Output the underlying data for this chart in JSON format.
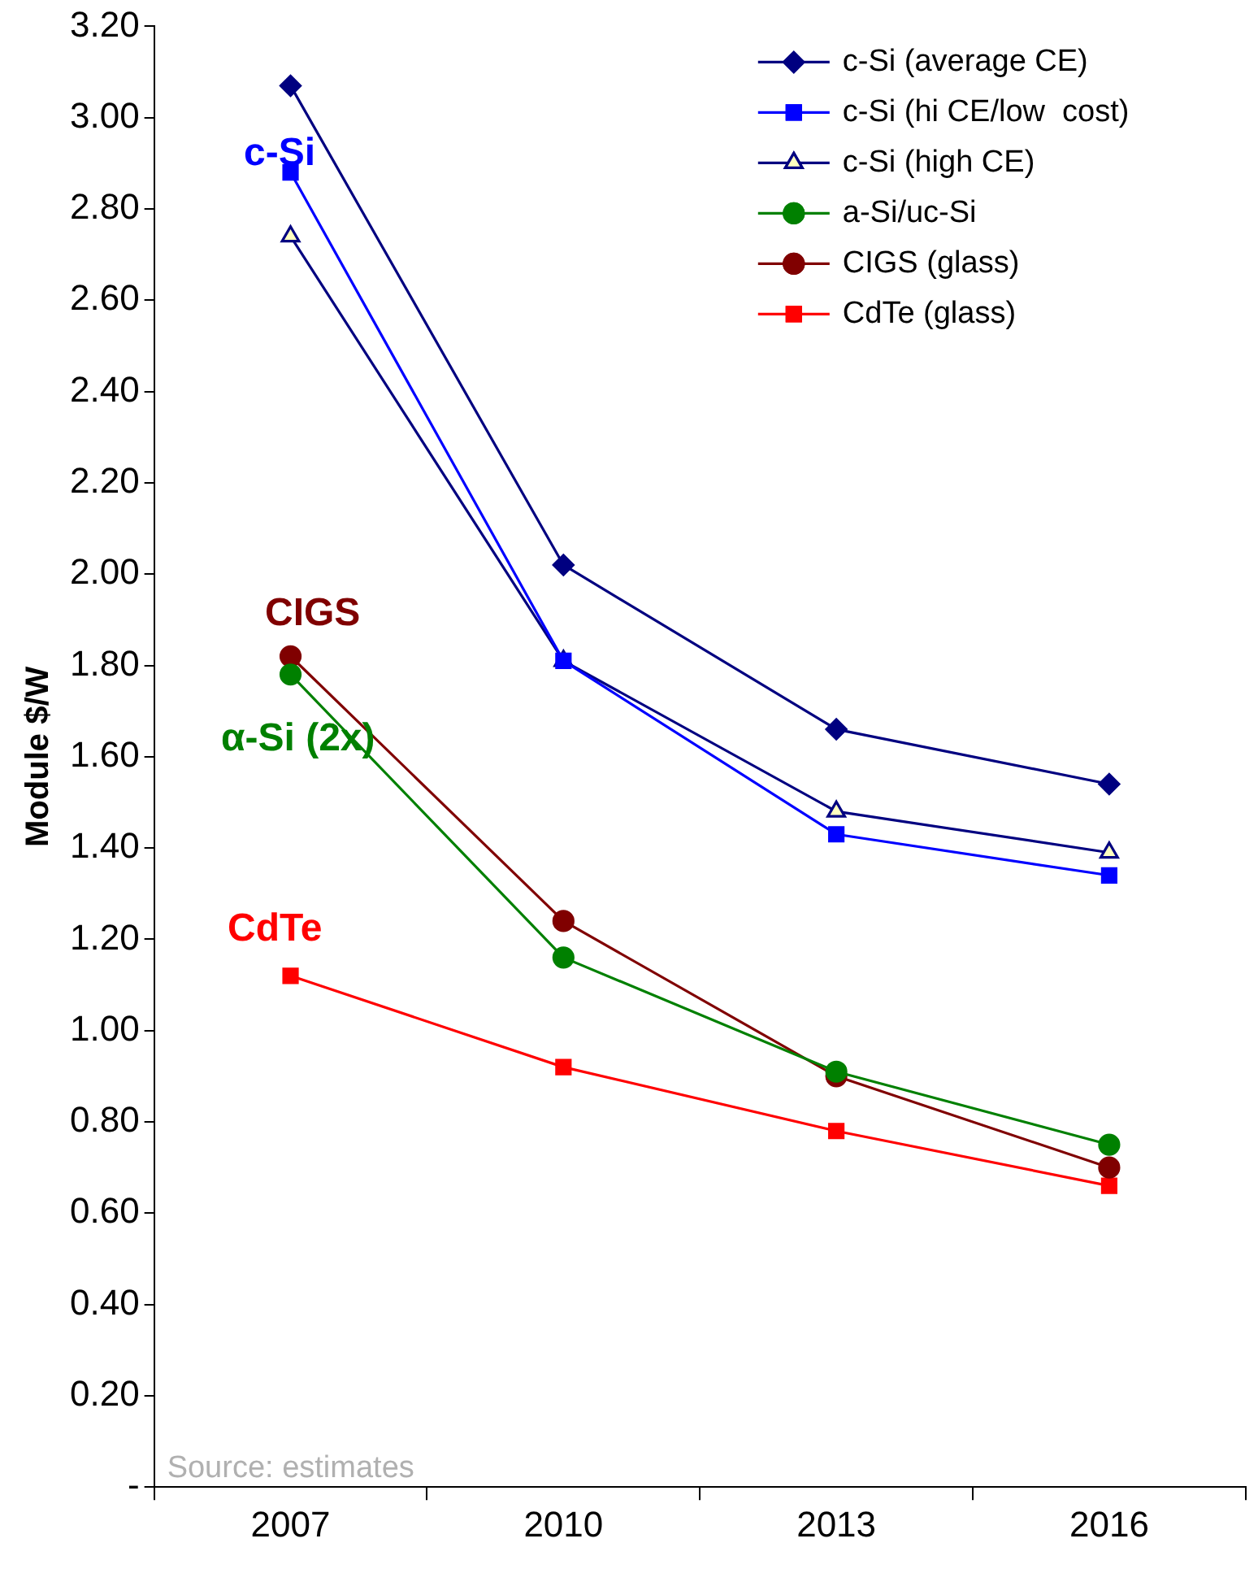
{
  "chart_data": {
    "type": "line",
    "ylabel": "Module $/W",
    "categories": [
      "2007",
      "2010",
      "2013",
      "2016"
    ],
    "series": [
      {
        "name": "c-Si (average CE)",
        "color": "#000080",
        "marker": "diamond",
        "values": [
          3.07,
          2.02,
          1.66,
          1.54
        ]
      },
      {
        "name": "c-Si (hi CE/low  cost)",
        "color": "#0000ff",
        "marker": "square",
        "values": [
          2.88,
          1.81,
          1.43,
          1.34
        ]
      },
      {
        "name": "c-Si (high CE)",
        "color": "#000080",
        "marker": "triangle",
        "values": [
          2.74,
          1.81,
          1.48,
          1.39
        ]
      },
      {
        "name": "a-Si/uc-Si",
        "color": "#008000",
        "marker": "circle",
        "values": [
          1.78,
          1.16,
          0.91,
          0.75
        ]
      },
      {
        "name": "CIGS (glass)",
        "color": "#800000",
        "marker": "circle",
        "values": [
          1.82,
          1.24,
          0.9,
          0.7
        ]
      },
      {
        "name": "CdTe (glass)",
        "color": "#ff0000",
        "marker": "square",
        "values": [
          1.12,
          0.92,
          0.78,
          0.66
        ]
      }
    ],
    "ylim": [
      0,
      3.2
    ],
    "yticks": [
      {
        "value": 0,
        "label": "-"
      },
      {
        "value": 0.2,
        "label": "0.20"
      },
      {
        "value": 0.4,
        "label": "0.40"
      },
      {
        "value": 0.6,
        "label": "0.60"
      },
      {
        "value": 0.8,
        "label": "0.80"
      },
      {
        "value": 1,
        "label": "1.00"
      },
      {
        "value": 1.2,
        "label": "1.20"
      },
      {
        "value": 1.4,
        "label": "1.40"
      },
      {
        "value": 1.6,
        "label": "1.60"
      },
      {
        "value": 1.8,
        "label": "1.80"
      },
      {
        "value": 2,
        "label": "2.00"
      },
      {
        "value": 2.2,
        "label": "2.20"
      },
      {
        "value": 2.4,
        "label": "2.40"
      },
      {
        "value": 2.6,
        "label": "2.60"
      },
      {
        "value": 2.8,
        "label": "2.80"
      },
      {
        "value": 3,
        "label": "3.00"
      },
      {
        "value": 3.2,
        "label": "3.20"
      }
    ],
    "grid": false,
    "legend": "top right",
    "line_style": "solid",
    "annotations": [
      "c-Si",
      "CIGS",
      "α-Si (2x)",
      "CdTe",
      "Source: estimates"
    ]
  }
}
